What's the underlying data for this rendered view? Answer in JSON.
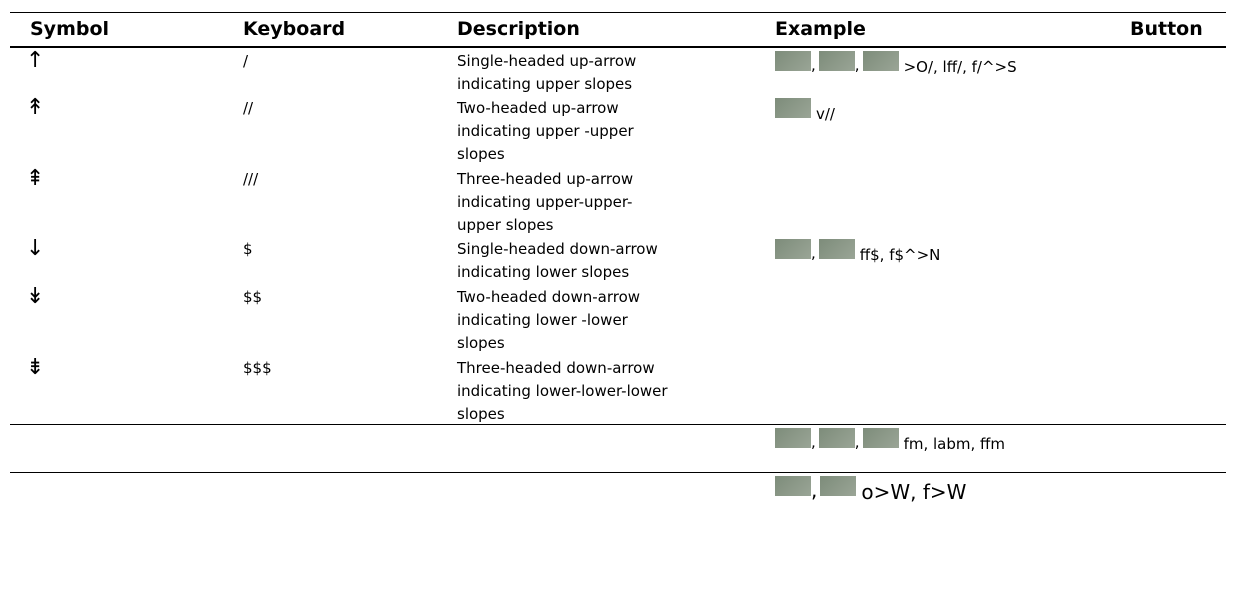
{
  "header": {
    "symbol": "Symbol",
    "keyboard": "Keyboard",
    "description": "Description",
    "example": "Example",
    "button": "Button"
  },
  "rows": [
    {
      "symbol": "↑",
      "keyboard": "/",
      "description": [
        "Single-headed up-arrow",
        "indicating upper slopes"
      ],
      "example": {
        "separators": [
          ",",
          ","
        ],
        "text": ">O/, lff/, f/^>S"
      }
    },
    {
      "symbol": "↟",
      "keyboard": "//",
      "description": [
        "Two-headed up-arrow",
        "indicating upper -upper",
        "slopes"
      ],
      "example": {
        "separators": [],
        "text": "v//"
      }
    },
    {
      "symbol": "⇞",
      "keyboard": "///",
      "description": [
        "Three-headed up-arrow",
        "indicating upper-upper-",
        "upper slopes"
      ]
    },
    {
      "symbol": "↓",
      "keyboard": "$",
      "description": [
        "Single-headed down-arrow",
        "indicating lower slopes"
      ],
      "example": {
        "separators": [
          ","
        ],
        "text": "ff$, f$^>N"
      }
    },
    {
      "symbol": "↡",
      "keyboard": "$$",
      "description": [
        "Two-headed down-arrow",
        "indicating lower -lower",
        "slopes"
      ]
    },
    {
      "symbol": "⇟",
      "keyboard": "$$$",
      "description": [
        "Three-headed down-arrow",
        "indicating lower-lower-lower",
        "slopes"
      ]
    },
    {
      "example": {
        "separators": [
          ",",
          ","
        ],
        "text": "fm, labm, ffm"
      }
    },
    {
      "example": {
        "separators": [
          ","
        ],
        "text": "o>W, f>W"
      }
    }
  ]
}
